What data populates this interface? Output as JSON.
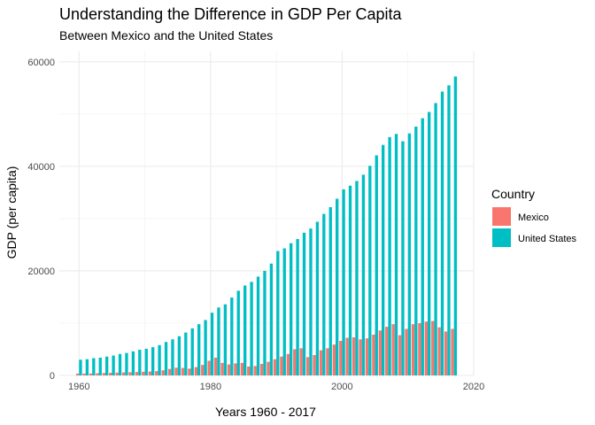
{
  "chart_data": {
    "type": "bar",
    "title": "Understanding the Difference in GDP Per Capita",
    "subtitle": "Between Mexico and the United States",
    "xlabel": "Years 1960 - 2017",
    "ylabel": "GDP (per capita)",
    "xlim": [
      1957,
      2020
    ],
    "ylim": [
      0,
      62000
    ],
    "x_ticks": [
      1960,
      1980,
      2000,
      2020
    ],
    "y_ticks": [
      0,
      20000,
      40000,
      60000
    ],
    "x_tick_labels": [
      "1960",
      "1980",
      "2000",
      "2020"
    ],
    "y_tick_labels": [
      "0",
      "20000",
      "40000",
      "60000"
    ],
    "grid": true,
    "legend": {
      "title": "Country",
      "position": "right"
    },
    "x": [
      1960,
      1961,
      1962,
      1963,
      1964,
      1965,
      1966,
      1967,
      1968,
      1969,
      1970,
      1971,
      1972,
      1973,
      1974,
      1975,
      1976,
      1977,
      1978,
      1979,
      1980,
      1981,
      1982,
      1983,
      1984,
      1985,
      1986,
      1987,
      1988,
      1989,
      1990,
      1991,
      1992,
      1993,
      1994,
      1995,
      1996,
      1997,
      1998,
      1999,
      2000,
      2001,
      2002,
      2003,
      2004,
      2005,
      2006,
      2007,
      2008,
      2009,
      2010,
      2011,
      2012,
      2013,
      2014,
      2015,
      2016,
      2017
    ],
    "series": [
      {
        "name": "Mexico",
        "color": "#F8766D",
        "values": [
          340,
          360,
          380,
          410,
          470,
          500,
          540,
          580,
          620,
          660,
          700,
          750,
          820,
          980,
          1240,
          1480,
          1430,
          1300,
          1590,
          2000,
          2800,
          3400,
          2400,
          2100,
          2300,
          2400,
          1700,
          1800,
          2200,
          2600,
          3100,
          3600,
          4100,
          5000,
          5200,
          3500,
          3900,
          4800,
          5200,
          5900,
          6600,
          7200,
          7300,
          6900,
          7100,
          7800,
          8600,
          9300,
          9800,
          7700,
          8900,
          9800,
          10000,
          10300,
          10400,
          9200,
          8400,
          8900
        ]
      },
      {
        "name": "United States",
        "color": "#00BFC4",
        "values": [
          3000,
          3100,
          3300,
          3400,
          3600,
          3800,
          4100,
          4300,
          4600,
          4900,
          5100,
          5400,
          5800,
          6400,
          6900,
          7500,
          8200,
          9000,
          9800,
          10600,
          12000,
          13000,
          13600,
          14900,
          16200,
          17200,
          17900,
          18900,
          20000,
          21400,
          23800,
          24300,
          25300,
          26100,
          27300,
          28100,
          29400,
          30900,
          32200,
          33800,
          35600,
          36300,
          37200,
          38400,
          40100,
          42100,
          44100,
          45600,
          46200,
          44800,
          46300,
          47600,
          49200,
          50400,
          52100,
          54300,
          55500,
          57200
        ]
      }
    ]
  }
}
